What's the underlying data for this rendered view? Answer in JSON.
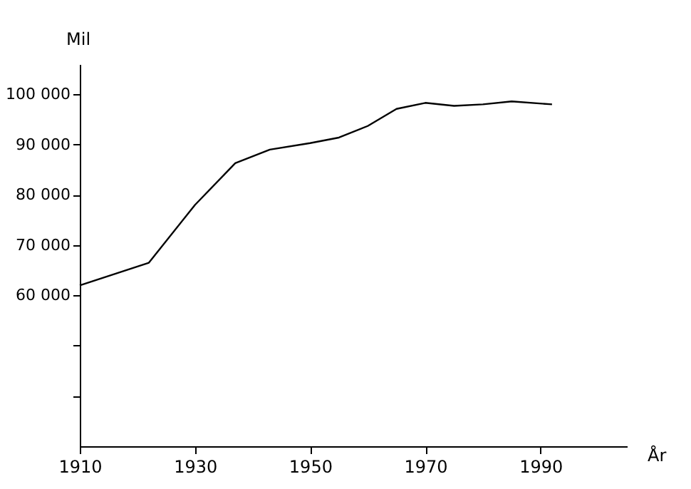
{
  "chart_data": {
    "type": "line",
    "xlabel": "År",
    "ylabel": "Mil",
    "x": [
      1910,
      1922,
      1930,
      1937,
      1943,
      1950,
      1955,
      1960,
      1965,
      1970,
      1975,
      1980,
      1985,
      1992
    ],
    "series": [
      {
        "color": "#000000",
        "values": [
          62000,
          66500,
          78000,
          86300,
          89000,
          90300,
          91400,
          93700,
          97100,
          98300,
          97700,
          98000,
          98600,
          98000
        ]
      }
    ],
    "xlim": [
      1910,
      2005
    ],
    "xticks": [
      1910,
      1930,
      1950,
      1970,
      1990
    ],
    "ylim": [
      30000,
      106000
    ],
    "yticks": [
      {
        "value": 40000,
        "label": null
      },
      {
        "value": 50000,
        "label": null
      },
      {
        "value": 60000,
        "label": "60 000"
      },
      {
        "value": 70000,
        "label": "70 000"
      },
      {
        "value": 80000,
        "label": "80 000"
      },
      {
        "value": 90000,
        "label": "90 000"
      },
      {
        "value": 100000,
        "label": "100 000"
      }
    ],
    "grid": false,
    "marker": "none",
    "line_style": "solid"
  }
}
